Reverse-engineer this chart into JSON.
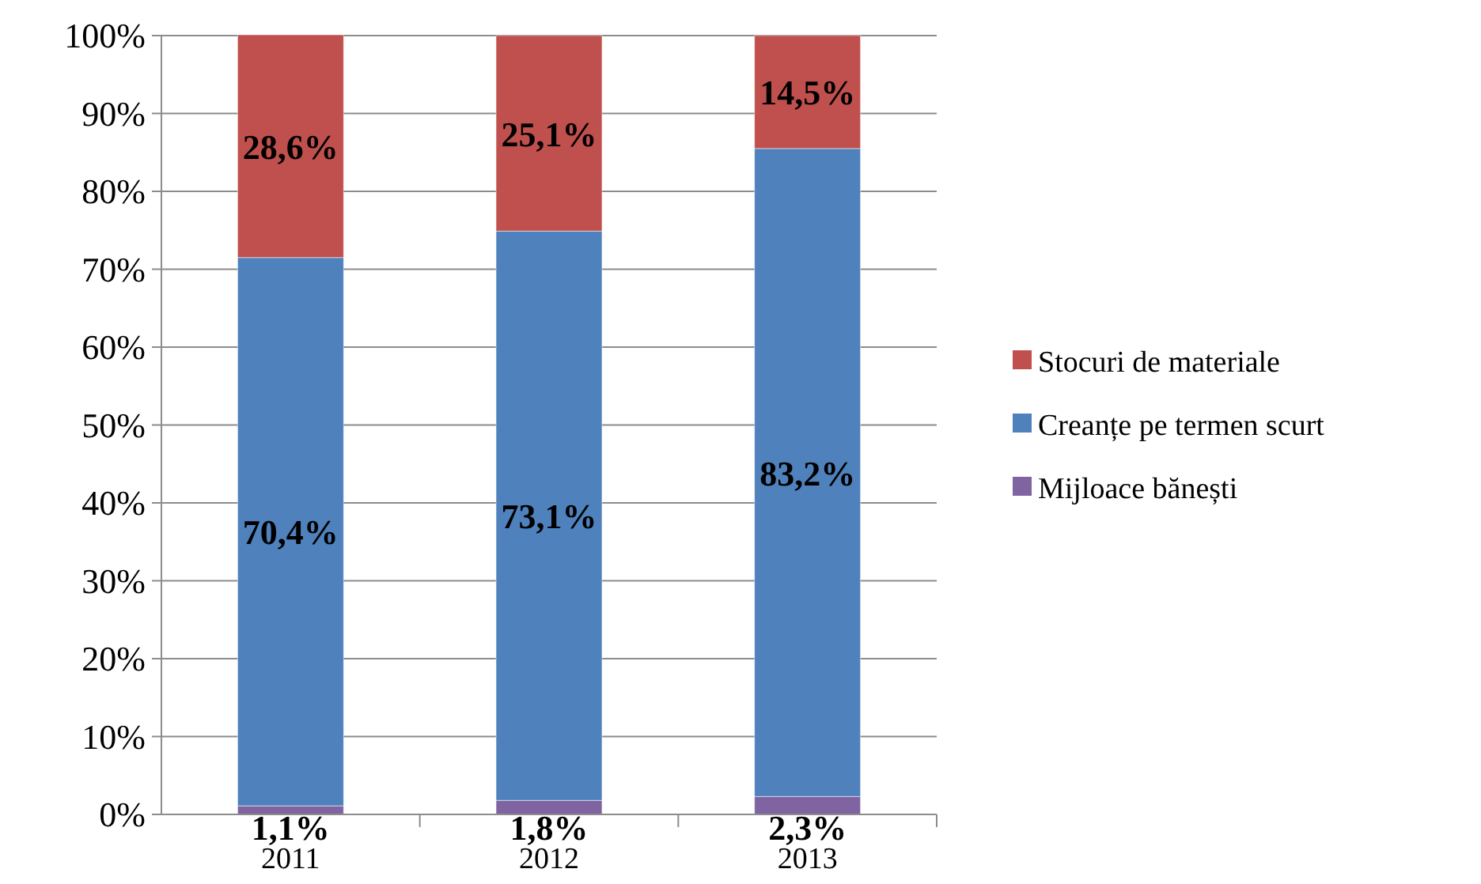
{
  "chart_data": {
    "type": "bar",
    "stacked": true,
    "categories": [
      "2011",
      "2012",
      "2013"
    ],
    "series": [
      {
        "name": "Mijloace bănești",
        "color": "#8064a2",
        "values": [
          1.1,
          1.8,
          2.3
        ],
        "value_labels": [
          "1,1%",
          "1,8%",
          "2,3%"
        ]
      },
      {
        "name": "Creanțe pe termen scurt",
        "color": "#4f81bd",
        "values": [
          70.4,
          73.1,
          83.2
        ],
        "value_labels": [
          "70,4%",
          "73,1%",
          "83,2%"
        ]
      },
      {
        "name": "Stocuri de materiale",
        "color": "#c0504d",
        "values": [
          28.6,
          25.1,
          14.5
        ],
        "value_labels": [
          "28,6%",
          "25,1%",
          "14,5%"
        ]
      }
    ],
    "ylim": [
      0,
      100.1
    ],
    "yticks": [
      {
        "value": 0,
        "label": "0%"
      },
      {
        "value": 10,
        "label": "10%"
      },
      {
        "value": 20,
        "label": "20%"
      },
      {
        "value": 30,
        "label": "30%"
      },
      {
        "value": 40,
        "label": "40%"
      },
      {
        "value": 50,
        "label": "50%"
      },
      {
        "value": 60,
        "label": "60%"
      },
      {
        "value": 70,
        "label": "70%"
      },
      {
        "value": 80,
        "label": "80%"
      },
      {
        "value": 90,
        "label": "90%"
      },
      {
        "value": 100,
        "label": "100%"
      }
    ],
    "grid": "y",
    "legend": "right"
  }
}
